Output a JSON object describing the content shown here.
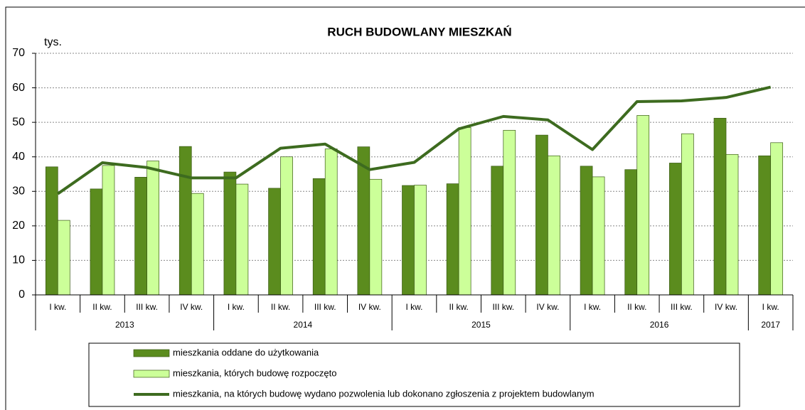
{
  "chart_data": {
    "type": "bar-line",
    "title": "RUCH BUDOWLANY MIESZKAŃ",
    "y_label": "tys.",
    "categories": [
      "I kw.",
      "II kw.",
      "III kw.",
      "IV kw.",
      "I kw.",
      "II kw.",
      "III kw.",
      "IV kw.",
      "I kw.",
      "II kw.",
      "III kw.",
      "IV kw.",
      "I kw.",
      "II kw.",
      "III kw.",
      "IV kw.",
      "I kw."
    ],
    "years": [
      "2013",
      "2014",
      "2015",
      "2016",
      "2017"
    ],
    "series": [
      {
        "name": "mieszkania oddane do użytkowania",
        "type": "bar",
        "color": "#5b8c1e",
        "values": [
          37.1,
          30.7,
          34.1,
          43.0,
          35.6,
          30.9,
          33.7,
          42.9,
          31.7,
          32.2,
          37.3,
          46.3,
          37.3,
          36.3,
          38.2,
          51.2,
          40.3
        ]
      },
      {
        "name": "mieszkania, których budowę rozpoczęto",
        "type": "bar",
        "color": "#ccff99",
        "values": [
          21.6,
          37.5,
          38.8,
          29.4,
          32.1,
          40.0,
          42.3,
          33.5,
          31.8,
          48.5,
          47.7,
          40.3,
          34.2,
          52.0,
          46.7,
          40.7,
          44.1
        ]
      },
      {
        "name": "mieszkania, na których budowę wydano pozwolenia lub dokonano zgłoszenia z projektem budowlanym",
        "type": "line",
        "color": "#3d6b1f",
        "values": [
          29.3,
          38.3,
          36.9,
          33.9,
          33.9,
          42.5,
          43.7,
          36.3,
          38.4,
          48.1,
          51.7,
          50.7,
          42.1,
          56.0,
          56.2,
          57.2,
          60.2
        ]
      }
    ],
    "ylim": [
      0,
      70
    ],
    "yticks": [
      0,
      10,
      20,
      30,
      40,
      50,
      60,
      70
    ],
    "grid": true
  }
}
